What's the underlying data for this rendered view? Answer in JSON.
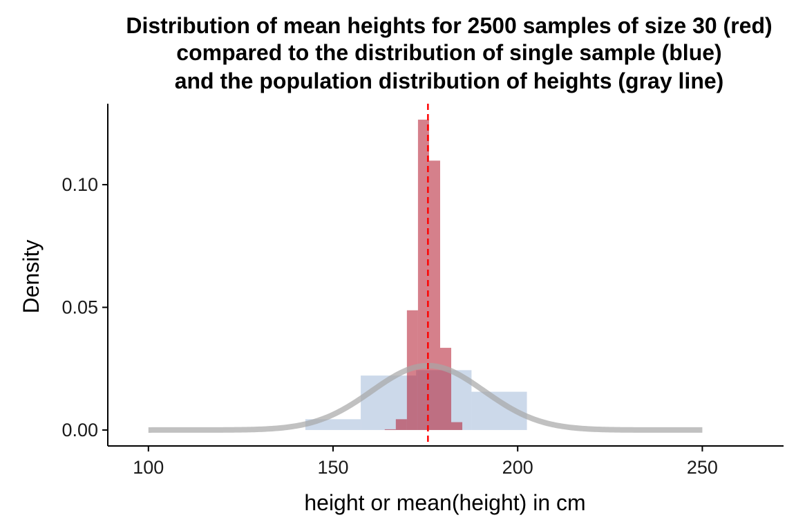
{
  "chart_data": {
    "type": "histogram",
    "title_lines": [
      "Distribution of mean heights for 2500 samples of size 30 (red)",
      "compared to the distribution of  single sample (blue)",
      "and the population distribution of heights (gray line)"
    ],
    "xlabel": "height or mean(height) in cm",
    "ylabel": "Density",
    "xlim": [
      89,
      272
    ],
    "ylim": [
      -0.0065,
      0.133
    ],
    "x_ticks": [
      100,
      150,
      200,
      250
    ],
    "x_tick_labels": [
      "100",
      "150",
      "200",
      "250"
    ],
    "y_ticks": [
      0.0,
      0.05,
      0.1
    ],
    "y_tick_labels": [
      "0.00",
      "0.05",
      "0.10"
    ],
    "grid": false,
    "colors": {
      "sample_means": "#b2182b",
      "single_sample": "#b0c4de",
      "population": "#a6a6a6",
      "mean_line": "#ff0000"
    },
    "series": [
      {
        "kind": "histogram",
        "bin_edges": [
          142.5,
          157.5,
          172.5,
          187.5,
          202.5
        ],
        "density": [
          0.0044,
          0.0222,
          0.0244,
          0.0156
        ]
      },
      {
        "kind": "histogram",
        "bin_edges": [
          164,
          167,
          170,
          173,
          176,
          179,
          182,
          185
        ],
        "density": [
          0.0003,
          0.0044,
          0.0488,
          0.1265,
          0.1098,
          0.0335,
          0.0032
        ]
      },
      {
        "kind": "normal_curve",
        "mean": 175.7,
        "sd": 15.2,
        "x_range": [
          100,
          250
        ]
      },
      {
        "kind": "vline",
        "x": 175.7
      }
    ]
  }
}
